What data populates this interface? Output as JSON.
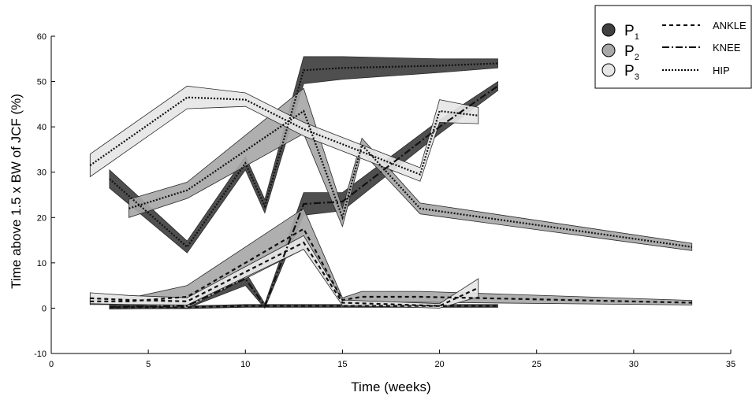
{
  "chart_data": {
    "type": "line",
    "xlabel": "Time (weeks)",
    "ylabel": "Time above 1.5 x BW  of JCF (%)",
    "xlim": [
      0,
      35
    ],
    "ylim": [
      -10,
      60
    ],
    "xticks": [
      "0",
      "5",
      "10",
      "15",
      "20",
      "25",
      "30",
      "35"
    ],
    "yticks": [
      "-10",
      "0",
      "10",
      "20",
      "30",
      "40",
      "50",
      "60"
    ],
    "legend": {
      "position": "top-right",
      "participants": [
        {
          "label": "P",
          "sub": "1",
          "color": "#404040"
        },
        {
          "label": "P",
          "sub": "2",
          "color": "#a8a8a8"
        },
        {
          "label": "P",
          "sub": "3",
          "color": "#e6e6e6"
        }
      ],
      "joints": [
        {
          "label": "ANKLE",
          "dash": "5,4"
        },
        {
          "label": "KNEE",
          "dash": "9,3,2,3"
        },
        {
          "label": "HIP",
          "dash": "2,2"
        }
      ]
    },
    "series": [
      {
        "participant": "P1",
        "joint": "ANKLE",
        "color": "#404040",
        "x": [
          3,
          7,
          10,
          11,
          13,
          15,
          20,
          23
        ],
        "y": [
          0.2,
          0.2,
          0.5,
          0.5,
          0.5,
          0.5,
          0.5,
          0.5
        ],
        "band": [
          0.3,
          0.3,
          0.3,
          0.3,
          0.3,
          0.3,
          0.3,
          0.3
        ]
      },
      {
        "participant": "P1",
        "joint": "KNEE",
        "color": "#404040",
        "x": [
          3,
          7,
          10,
          11,
          13,
          15,
          20,
          23
        ],
        "y": [
          0.3,
          0.5,
          6.5,
          0.5,
          23,
          23.5,
          40,
          49
        ],
        "band": [
          0.5,
          0.5,
          1.5,
          0.5,
          2.5,
          2,
          1.5,
          1
        ]
      },
      {
        "participant": "P1",
        "joint": "HIP",
        "color": "#404040",
        "x": [
          3,
          7,
          10,
          11,
          13,
          15,
          20,
          23
        ],
        "y": [
          28.5,
          13.5,
          32,
          22.5,
          52.5,
          53,
          53.5,
          54
        ],
        "band": [
          2,
          1.3,
          1.5,
          1.5,
          3,
          2.5,
          1.5,
          1
        ]
      },
      {
        "participant": "P2",
        "joint": "ANKLE",
        "color": "#a8a8a8",
        "x": [
          2,
          4,
          7,
          13,
          15,
          16,
          19,
          33
        ],
        "y": [
          1.5,
          1.5,
          2.5,
          17.5,
          1.8,
          2.5,
          2.5,
          1.2
        ],
        "band": [
          0.7,
          0.7,
          2.5,
          4.5,
          0.5,
          1.2,
          1.2,
          0.5
        ]
      },
      {
        "participant": "P2",
        "joint": "HIP",
        "color": "#a8a8a8",
        "x": [
          4,
          7,
          13,
          15,
          16,
          19,
          33
        ],
        "y": [
          22,
          26,
          43.5,
          20,
          36,
          22,
          13.5
        ],
        "band": [
          2,
          1.8,
          5,
          2,
          1.5,
          1.2,
          0.8
        ]
      },
      {
        "participant": "P3",
        "joint": "ANKLE",
        "color": "#e6e6e6",
        "x": [
          2,
          4,
          7,
          13,
          15,
          20,
          22
        ],
        "y": [
          2.2,
          1.8,
          1.5,
          14.5,
          1.2,
          0.5,
          4.5
        ],
        "band": [
          1.2,
          1,
          0.8,
          1.5,
          0.6,
          0.5,
          2
        ]
      },
      {
        "participant": "P3",
        "joint": "HIP",
        "color": "#e6e6e6",
        "x": [
          2,
          7,
          10,
          13,
          19,
          20,
          22
        ],
        "y": [
          31.5,
          46.5,
          46,
          39.5,
          29.5,
          43.5,
          42.5
        ],
        "band": [
          2.5,
          2.5,
          1.5,
          1.5,
          1.5,
          2.5,
          1.8
        ]
      }
    ]
  }
}
